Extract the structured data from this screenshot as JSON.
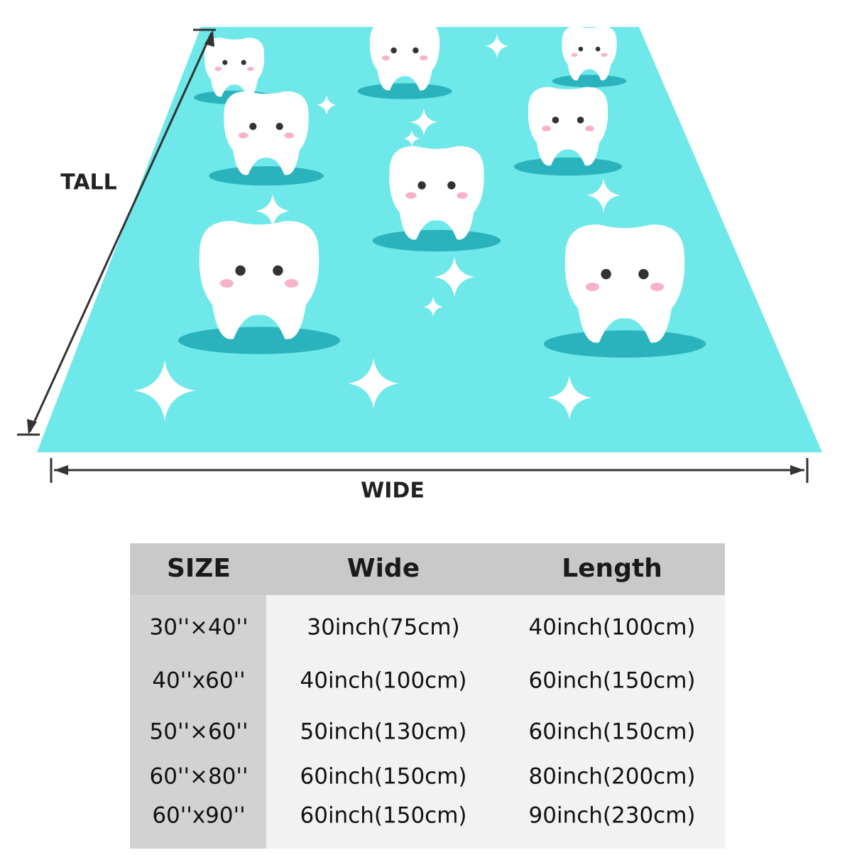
{
  "labels": {
    "tall": "TALL",
    "wide": "WIDE"
  },
  "table": {
    "header": [
      "SIZE",
      "Wide",
      "Length"
    ],
    "rows": [
      [
        "30''×40''",
        "30inch(75cm)",
        "40inch(100cm)"
      ],
      [
        "40''x60''",
        "40inch(100cm)",
        "60inch(150cm)"
      ],
      [
        "50''×60''",
        "50inch(130cm)",
        "60inch(150cm)"
      ],
      [
        "60''×80''",
        "60inch(150cm)",
        "80inch(200cm)"
      ],
      [
        "60''x90''",
        "60inch(150cm)",
        "90inch(230cm)"
      ]
    ]
  }
}
